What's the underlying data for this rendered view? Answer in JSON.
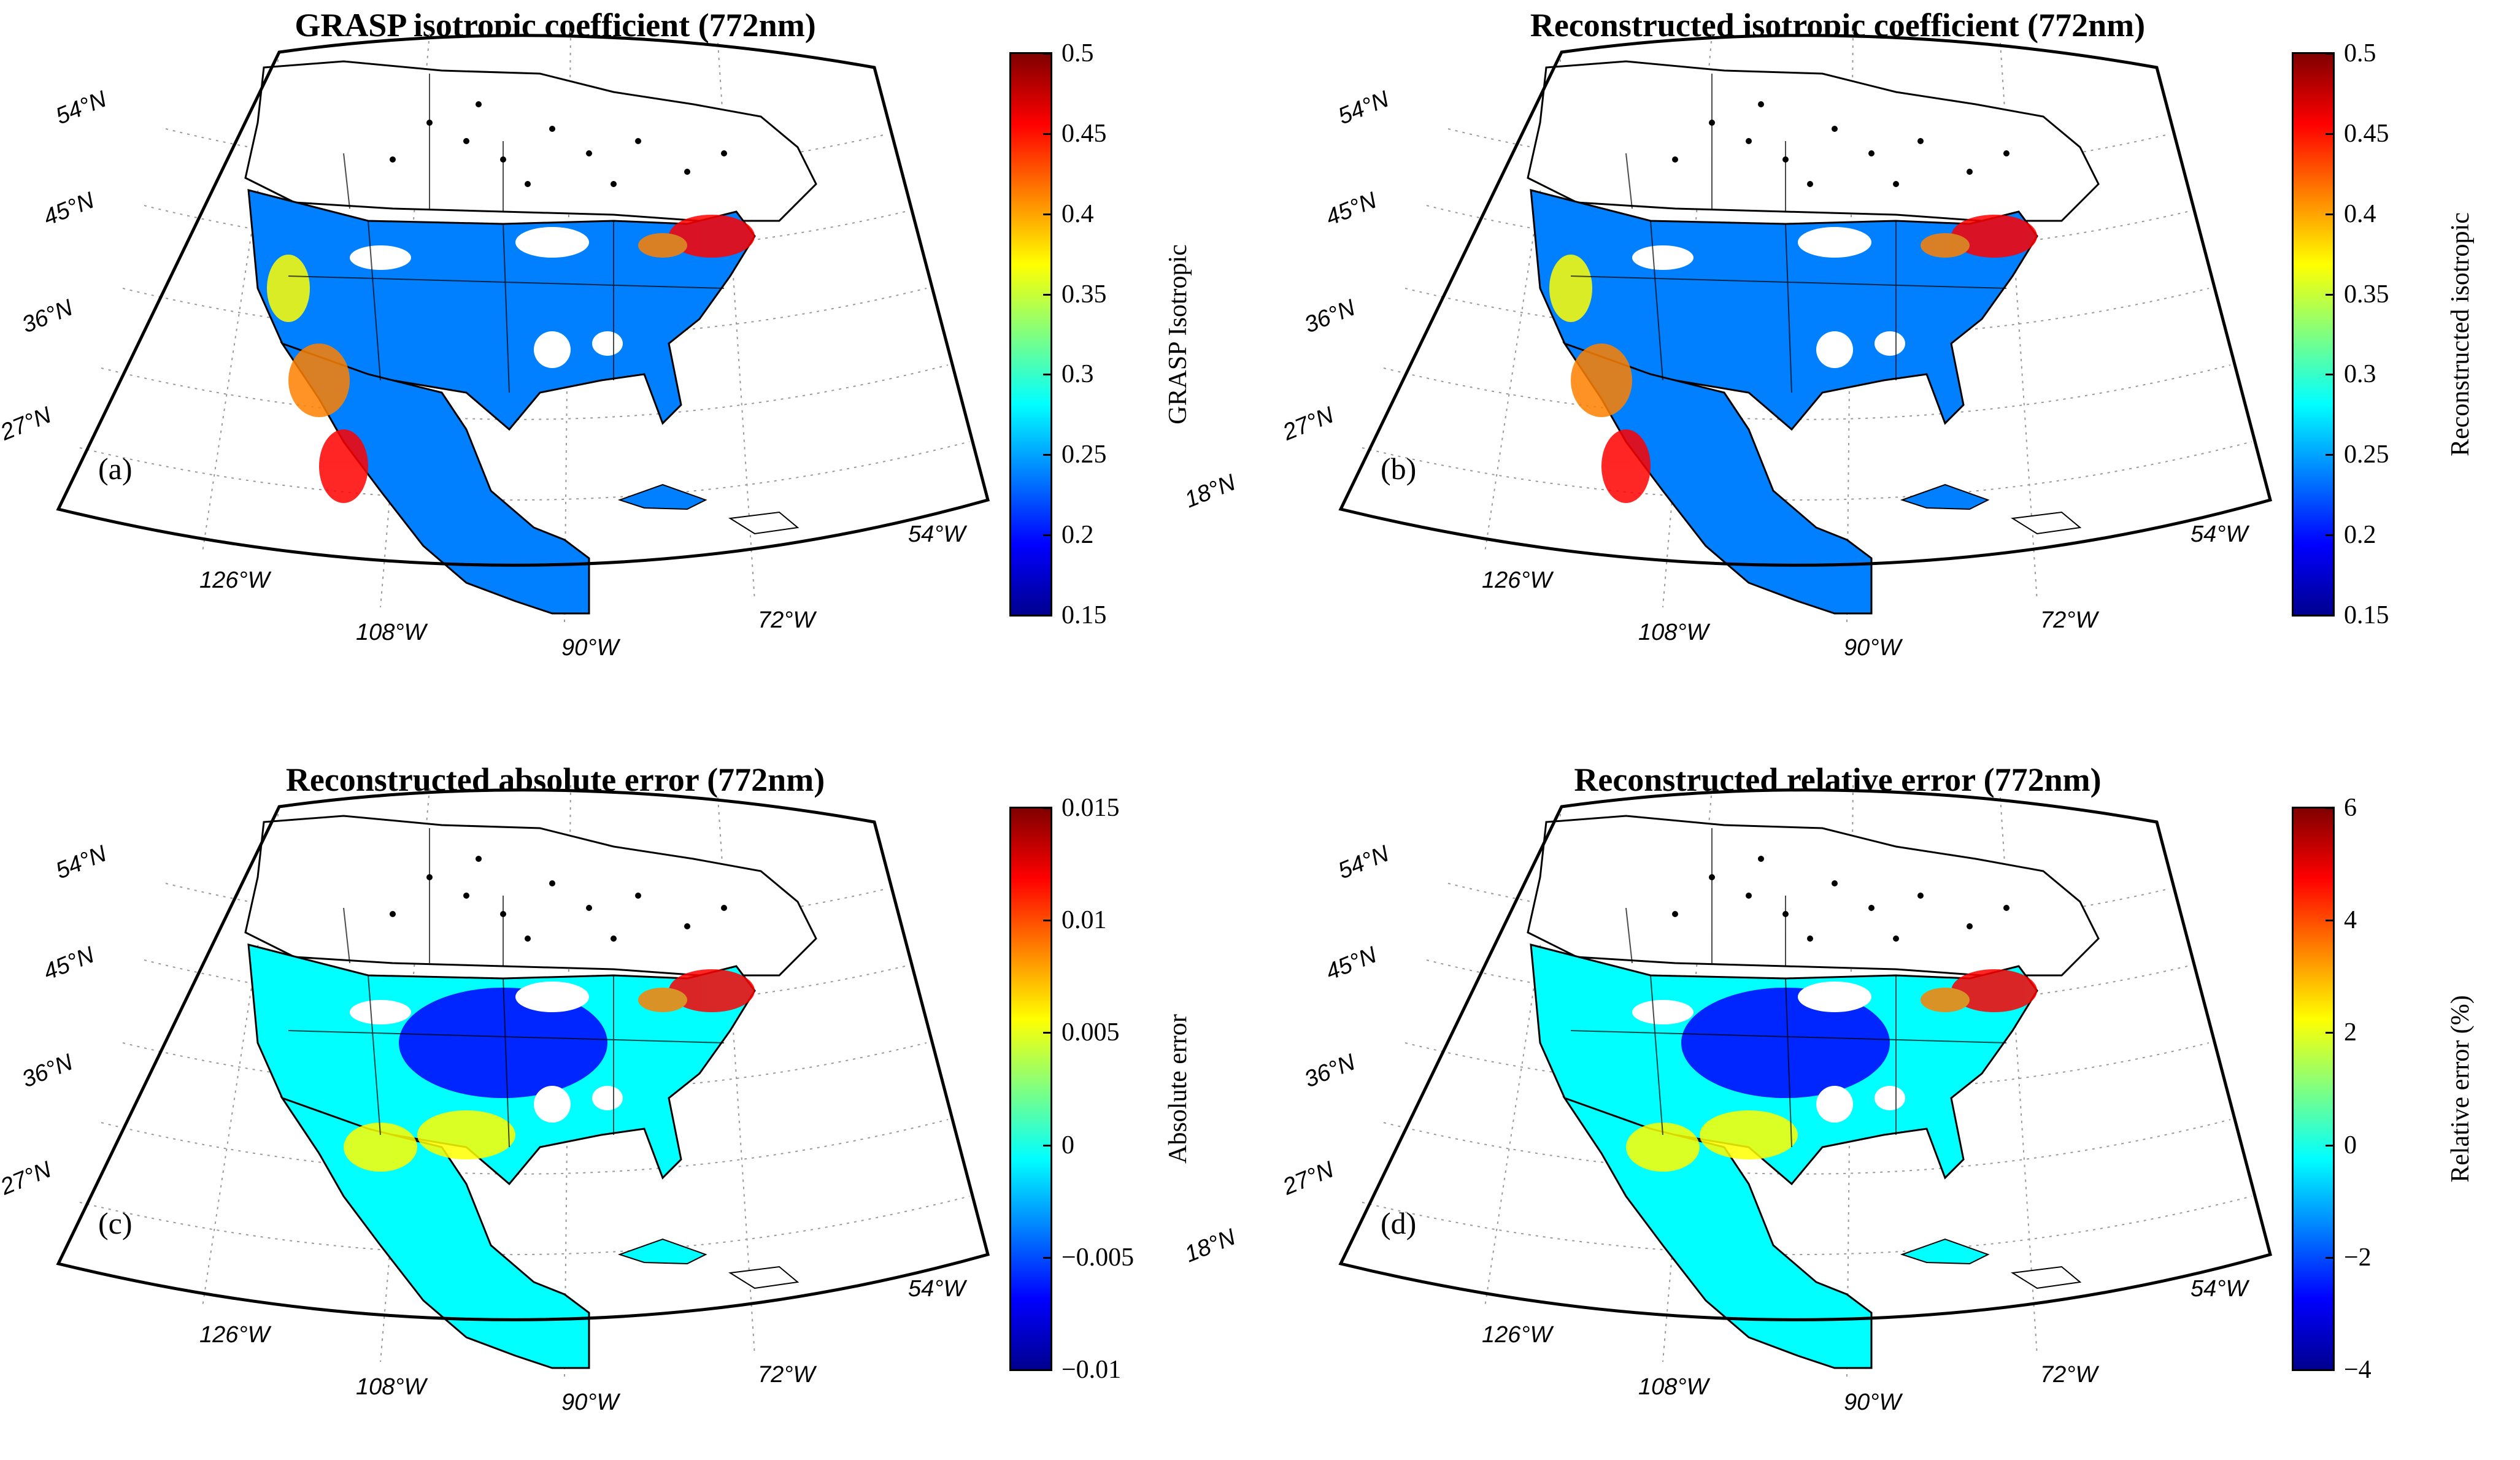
{
  "figure": {
    "wavelength": "772nm",
    "lat_labels": [
      "54°N",
      "45°N",
      "36°N",
      "27°N",
      "18°N"
    ],
    "lon_labels": [
      "126°W",
      "108°W",
      "90°W",
      "72°W",
      "54°W"
    ]
  },
  "panels": [
    {
      "id": "a",
      "label": "(a)",
      "title": "GRASP isotropic coefficient (772nm)",
      "colorbar": {
        "label": "GRASP Isotropic",
        "min": 0.15,
        "max": 0.5,
        "ticks": [
          "0.5",
          "0.45",
          "0.4",
          "0.35",
          "0.3",
          "0.25",
          "0.2",
          "0.15"
        ]
      }
    },
    {
      "id": "b",
      "label": "(b)",
      "title": "Reconstructed isotropic coefficient (772nm)",
      "colorbar": {
        "label": "Reconstructed isotropic",
        "min": 0.15,
        "max": 0.5,
        "ticks": [
          "0.5",
          "0.45",
          "0.4",
          "0.35",
          "0.3",
          "0.25",
          "0.2",
          "0.15"
        ]
      }
    },
    {
      "id": "c",
      "label": "(c)",
      "title": "Reconstructed absolute error (772nm)",
      "colorbar": {
        "label": "Absolute error",
        "min": -0.01,
        "max": 0.015,
        "ticks": [
          "0.015",
          "0.01",
          "0.005",
          "0",
          "−0.005",
          "−0.01"
        ]
      }
    },
    {
      "id": "d",
      "label": "(d)",
      "title": "Reconstructed relative error (772nm)",
      "colorbar": {
        "label": "Relative error (%)",
        "min": -4,
        "max": 6,
        "ticks": [
          "6",
          "4",
          "2",
          "0",
          "−2",
          "−4"
        ]
      }
    }
  ],
  "colors": {
    "colormap": [
      "#00008f",
      "#0000ff",
      "#0080ff",
      "#00ffff",
      "#80ff80",
      "#ffff00",
      "#ff8000",
      "#ff0000",
      "#800000"
    ],
    "frame": "#000000",
    "graticule": "#9a9a9a",
    "ocean": "#ffffff"
  }
}
